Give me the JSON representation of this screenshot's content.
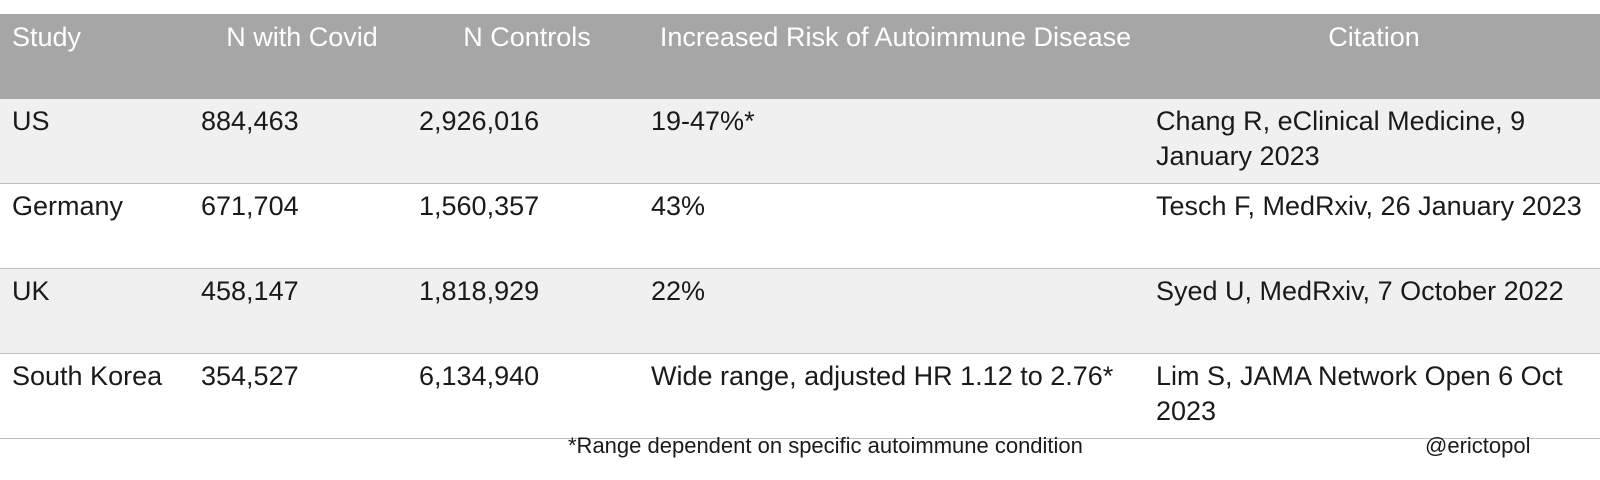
{
  "chart_data": {
    "type": "table",
    "columns": [
      "Study",
      "N with Covid",
      "N Controls",
      "Increased Risk of Autoimmune Disease",
      "Citation"
    ],
    "rows": [
      [
        "US",
        "884,463",
        "2,926,016",
        "19-47%*",
        "Chang R, eClinical Medicine, 9 January 2023"
      ],
      [
        "Germany",
        "671,704",
        "1,560,357",
        "43%",
        "Tesch F, MedRxiv, 26 January 2023"
      ],
      [
        "UK",
        "458,147",
        "1,818,929",
        "22%",
        "Syed U, MedRxiv, 7 October 2022"
      ],
      [
        "South Korea",
        "354,527",
        "6,134,940",
        "Wide range, adjusted HR 1.12 to 2.76*",
        "Lim S, JAMA Network Open 6 Oct 2023"
      ]
    ],
    "footnote": "*Range dependent on specific autoimmune condition",
    "credit": "@erictopol",
    "colors": {
      "header_bg": "#a6a6a6",
      "header_text": "#ffffff",
      "row_alt_bg": "#f0f0f0",
      "row_bg": "#ffffff",
      "border": "#bfbfbf"
    }
  }
}
